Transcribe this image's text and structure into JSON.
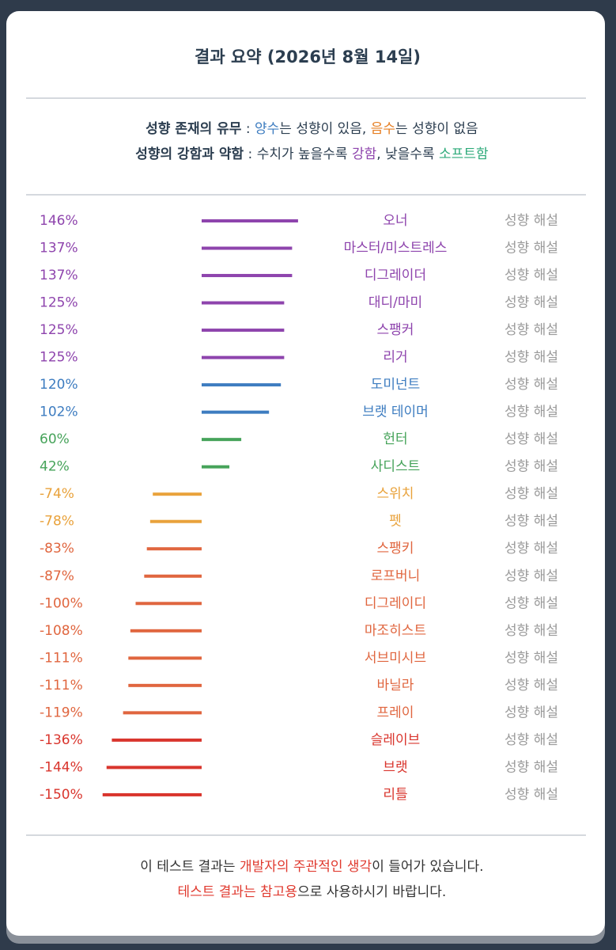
{
  "header": {
    "title": "결과 요약 (2026년 8월 14일)"
  },
  "legend": {
    "lines": [
      [
        "성향 존재의 유무",
        " : ",
        "양수",
        "는 성향이 있음, ",
        "음수",
        "는 성향이 없음"
      ],
      [
        "성향의 강함과 약함",
        " : 수치가 높을수록 ",
        "강함",
        ", 낮을수록 ",
        "소프트함"
      ]
    ]
  },
  "chart_data": {
    "type": "bar",
    "orientation": "horizontal",
    "categories": [
      "오너",
      "마스터/미스트레스",
      "디그레이더",
      "대디/마미",
      "스팽커",
      "리거",
      "도미넌트",
      "브랫 테이머",
      "헌터",
      "사디스트",
      "스위치",
      "펫",
      "스팽키",
      "로프버니",
      "디그레이디",
      "마조히스트",
      "서브미시브",
      "바닐라",
      "프레이",
      "슬레이브",
      "브랫",
      "리틀"
    ],
    "values": [
      146,
      137,
      137,
      125,
      125,
      125,
      120,
      102,
      60,
      42,
      -74,
      -78,
      -83,
      -87,
      -100,
      -108,
      -111,
      -111,
      -119,
      -136,
      -144,
      -150
    ],
    "value_labels": [
      "146%",
      "137%",
      "137%",
      "125%",
      "125%",
      "125%",
      "120%",
      "102%",
      "60%",
      "42%",
      "-74%",
      "-78%",
      "-83%",
      "-87%",
      "-100%",
      "-108%",
      "-111%",
      "-111%",
      "-119%",
      "-136%",
      "-144%",
      "-150%"
    ],
    "colors": [
      "#8e44ad",
      "#8e44ad",
      "#8e44ad",
      "#8e44ad",
      "#8e44ad",
      "#8e44ad",
      "#3d7cc0",
      "#3d7cc0",
      "#46a35a",
      "#46a35a",
      "#e9a23b",
      "#e9a23b",
      "#e0663f",
      "#e0663f",
      "#e0663f",
      "#e0663f",
      "#e0663f",
      "#e0663f",
      "#e0663f",
      "#d9352d",
      "#d9352d",
      "#d9352d"
    ],
    "detail_link": "성향 해설"
  },
  "footer": {
    "lines": [
      [
        "이 테스트 결과는 ",
        "개발자의 주관적인 생각",
        "이 들어가 있습니다."
      ],
      [
        "테스트 결과는 참고용",
        "으로 사용하시기 바랍니다."
      ]
    ]
  }
}
